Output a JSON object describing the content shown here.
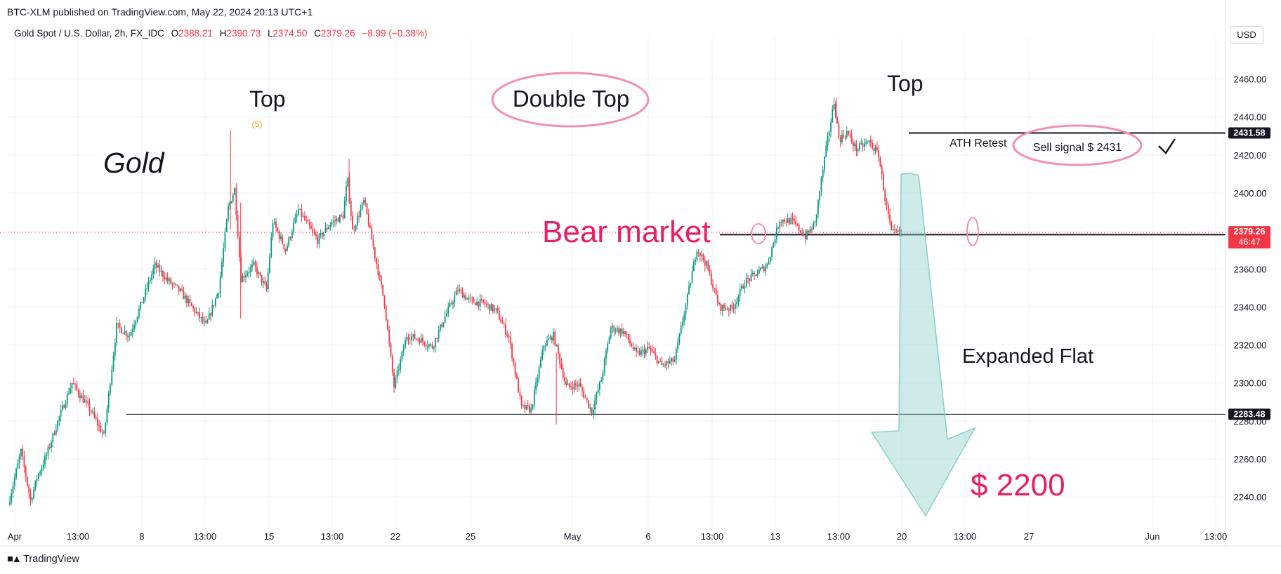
{
  "header": {
    "published": "BTC-XLM published on TradingView.com, May 22, 2024 20:13 UTC+1"
  },
  "legend": {
    "symbol": "Gold Spot / U.S. Dollar, 2h, FX_IDC",
    "open_label": "O",
    "open": "2388.21",
    "high_label": "H",
    "high": "2390.73",
    "low_label": "L",
    "low": "2374.50",
    "close_label": "C",
    "close": "2379.26",
    "change": "−8.99 (−0.38%)"
  },
  "currency": "USD",
  "footer": {
    "brand": "TradingView"
  },
  "colors": {
    "up": "#089981",
    "down": "#f23645",
    "annotation_pink": "#e91e63",
    "arrow_fill": "#80cbc4"
  },
  "chart_data": {
    "type": "candlestick",
    "title": "Gold Spot / U.S. Dollar",
    "ylim": [
      2226,
      2475
    ],
    "y_ticks": [
      2240,
      2260,
      2280,
      2300,
      2320,
      2340,
      2360,
      2380,
      2400,
      2420,
      2440,
      2460
    ],
    "y_tick_labels": [
      "2240.00",
      "2260.00",
      "2280.00",
      "2300.00",
      "2320.00",
      "2340.00",
      "2360.00",
      "2380.00",
      "2400.00",
      "2420.00",
      "2440.00",
      "2460.00"
    ],
    "x_ticks": [
      "Apr",
      "13:00",
      "8",
      "13:00",
      "15",
      "13:00",
      "22",
      "25",
      "May",
      "6",
      "13:00",
      "13",
      "13:00",
      "20",
      "13:00",
      "27",
      "Jun",
      "13:00"
    ],
    "grid": true,
    "price_path": [
      [
        0,
        2236
      ],
      [
        2,
        2264
      ],
      [
        3.5,
        2238
      ],
      [
        4.5,
        2250
      ],
      [
        6,
        2262
      ],
      [
        8,
        2282
      ],
      [
        10,
        2300
      ],
      [
        13,
        2285
      ],
      [
        15,
        2272
      ],
      [
        17,
        2330
      ],
      [
        19,
        2325
      ],
      [
        21,
        2343
      ],
      [
        23,
        2362
      ],
      [
        25,
        2354
      ],
      [
        27,
        2348
      ],
      [
        29,
        2339
      ],
      [
        31,
        2330
      ],
      [
        33,
        2349
      ],
      [
        34.5,
        2392
      ],
      [
        35.5,
        2402
      ],
      [
        36.5,
        2355
      ],
      [
        38.5,
        2362
      ],
      [
        40.5,
        2349
      ],
      [
        41.5,
        2385
      ],
      [
        43.5,
        2370
      ],
      [
        45.5,
        2391
      ],
      [
        48.5,
        2375
      ],
      [
        50.5,
        2384
      ],
      [
        52.5,
        2388
      ],
      [
        53.2,
        2408
      ],
      [
        54,
        2380
      ],
      [
        55.8,
        2396
      ],
      [
        57.5,
        2367
      ],
      [
        59,
        2342
      ],
      [
        60.5,
        2298
      ],
      [
        62.5,
        2325
      ],
      [
        64.5,
        2323
      ],
      [
        66.5,
        2319
      ],
      [
        68.5,
        2335
      ],
      [
        70.5,
        2349
      ],
      [
        72.5,
        2343
      ],
      [
        74.5,
        2342
      ],
      [
        76.5,
        2338
      ],
      [
        78.5,
        2324
      ],
      [
        80.5,
        2287
      ],
      [
        82,
        2286
      ],
      [
        84,
        2320
      ],
      [
        85.5,
        2325
      ],
      [
        87.5,
        2298
      ],
      [
        89.5,
        2299
      ],
      [
        91.5,
        2285
      ],
      [
        93,
        2302
      ],
      [
        94.5,
        2329
      ],
      [
        96.5,
        2327
      ],
      [
        98.5,
        2315
      ],
      [
        100.5,
        2318
      ],
      [
        102.5,
        2309
      ],
      [
        104.5,
        2312
      ],
      [
        106.5,
        2345
      ],
      [
        108,
        2371
      ],
      [
        109.5,
        2362
      ],
      [
        111.5,
        2340
      ],
      [
        113.5,
        2339
      ],
      [
        115.5,
        2353
      ],
      [
        117.5,
        2358
      ],
      [
        119,
        2362
      ],
      [
        121,
        2386
      ],
      [
        123,
        2385
      ],
      [
        125,
        2377
      ],
      [
        126.5,
        2384
      ],
      [
        128,
        2418
      ],
      [
        129.5,
        2448
      ],
      [
        130.3,
        2428
      ],
      [
        131.5,
        2432
      ],
      [
        133,
        2423
      ],
      [
        135,
        2427
      ],
      [
        136.5,
        2420
      ],
      [
        137.5,
        2397
      ],
      [
        138.5,
        2379
      ]
    ],
    "levels": [
      {
        "value": 2431.58,
        "label": "2431.58"
      },
      {
        "value": 2378.05,
        "label": "2378.05"
      },
      {
        "value": 2283.48,
        "label": "2283.48"
      },
      {
        "value": 2379.26,
        "label": "2379.26",
        "countdown": "46:47"
      }
    ],
    "annotations": [
      {
        "text": "Gold"
      },
      {
        "text": "Top"
      },
      {
        "text": "(5)"
      },
      {
        "text": "Double Top"
      },
      {
        "text": "Top"
      },
      {
        "text": "ATH Retest"
      },
      {
        "text": "Sell signal  $ 2431"
      },
      {
        "text": "Bear market"
      },
      {
        "text": "Expanded Flat"
      },
      {
        "text": "$ 2200"
      }
    ]
  }
}
